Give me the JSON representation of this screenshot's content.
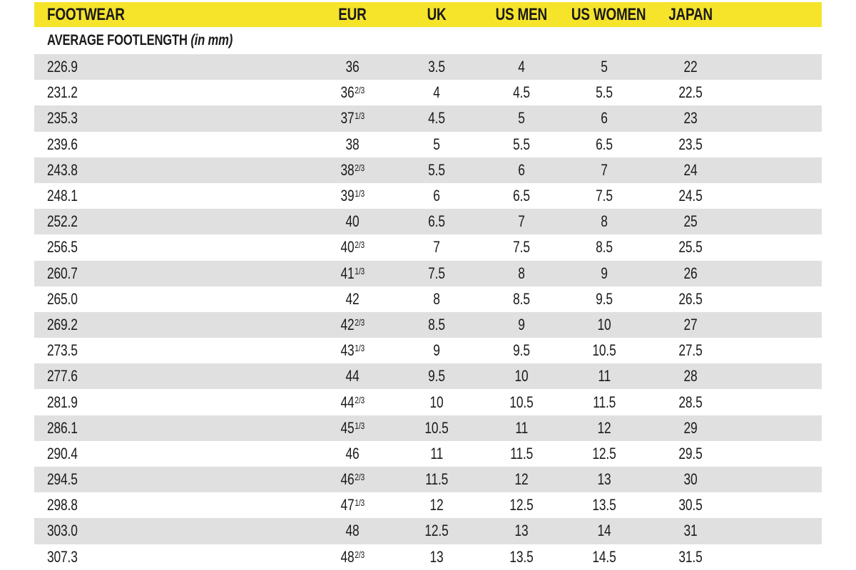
{
  "chart_data": {
    "type": "table",
    "columns": [
      "FOOTWEAR",
      "EUR",
      "UK",
      "US MEN",
      "US WOMEN",
      "JAPAN"
    ],
    "subheader": "AVERAGE FOOTLENGTH",
    "subheader_unit": "(in mm)",
    "rows": [
      [
        "226.9",
        "36",
        "3.5",
        "4",
        "5",
        "22"
      ],
      [
        "231.2",
        "36 2/3",
        "4",
        "4.5",
        "5.5",
        "22.5"
      ],
      [
        "235.3",
        "37 1/3",
        "4.5",
        "5",
        "6",
        "23"
      ],
      [
        "239.6",
        "38",
        "5",
        "5.5",
        "6.5",
        "23.5"
      ],
      [
        "243.8",
        "38 2/3",
        "5.5",
        "6",
        "7",
        "24"
      ],
      [
        "248.1",
        "39 1/3",
        "6",
        "6.5",
        "7.5",
        "24.5"
      ],
      [
        "252.2",
        "40",
        "6.5",
        "7",
        "8",
        "25"
      ],
      [
        "256.5",
        "40 2/3",
        "7",
        "7.5",
        "8.5",
        "25.5"
      ],
      [
        "260.7",
        "41 1/3",
        "7.5",
        "8",
        "9",
        "26"
      ],
      [
        "265.0",
        "42",
        "8",
        "8.5",
        "9.5",
        "26.5"
      ],
      [
        "269.2",
        "42 2/3",
        "8.5",
        "9",
        "10",
        "27"
      ],
      [
        "273.5",
        "43 1/3",
        "9",
        "9.5",
        "10.5",
        "27.5"
      ],
      [
        "277.6",
        "44",
        "9.5",
        "10",
        "11",
        "28"
      ],
      [
        "281.9",
        "44 2/3",
        "10",
        "10.5",
        "11.5",
        "28.5"
      ],
      [
        "286.1",
        "45 1/3",
        "10.5",
        "11",
        "12",
        "29"
      ],
      [
        "290.4",
        "46",
        "11",
        "11.5",
        "12.5",
        "29.5"
      ],
      [
        "294.5",
        "46 2/3",
        "11.5",
        "12",
        "13",
        "30"
      ],
      [
        "298.8",
        "47 1/3",
        "12",
        "12.5",
        "13.5",
        "30.5"
      ],
      [
        "303.0",
        "48",
        "12.5",
        "13",
        "14",
        "31"
      ],
      [
        "307.3",
        "48 2/3",
        "13",
        "13.5",
        "14.5",
        "31.5"
      ]
    ],
    "layout": {
      "legend": false,
      "grid": false,
      "striped_rows": true
    }
  },
  "colors": {
    "header_bg": "#F6E42B",
    "row_alt_bg": "#E0E0E1",
    "text": "#1A1A1A"
  }
}
